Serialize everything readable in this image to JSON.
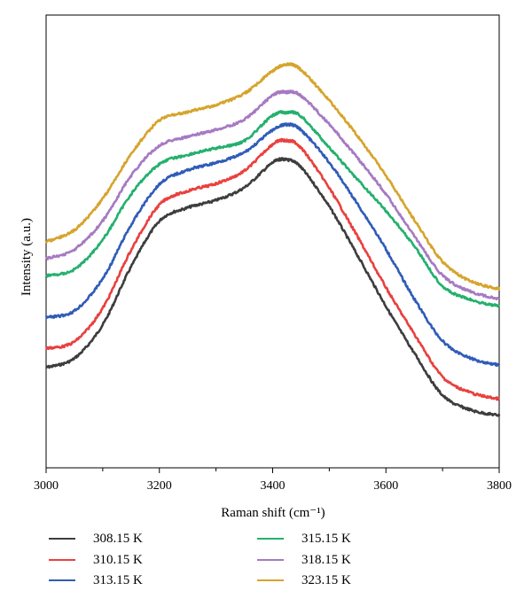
{
  "chart_data": {
    "type": "line",
    "xlabel": "Raman shift (cm⁻¹)",
    "ylabel": "Intensity (a.u.)",
    "xlim": [
      3000,
      3800
    ],
    "ylim": [
      0,
      1
    ],
    "x_ticks": [
      3000,
      3200,
      3400,
      3600,
      3800
    ],
    "x_tick_labels": [
      "3000",
      "3200",
      "3400",
      "3600",
      "3800"
    ],
    "y_ticks_shown": false,
    "grid": false,
    "legend_position": "bottom",
    "x": [
      3000,
      3050,
      3100,
      3150,
      3200,
      3250,
      3300,
      3350,
      3400,
      3425,
      3450,
      3500,
      3550,
      3600,
      3650,
      3700,
      3750,
      3800
    ],
    "series": [
      {
        "name": "308.15 K",
        "color": "#3d3d3d",
        "values": [
          0.163,
          0.189,
          0.284,
          0.447,
          0.576,
          0.614,
          0.635,
          0.671,
          0.741,
          0.749,
          0.728,
          0.617,
          0.479,
          0.336,
          0.204,
          0.085,
          0.043,
          0.028
        ]
      },
      {
        "name": "310.15 K",
        "color": "#e8413f",
        "values": [
          0.217,
          0.236,
          0.331,
          0.494,
          0.622,
          0.661,
          0.682,
          0.718,
          0.793,
          0.803,
          0.783,
          0.669,
          0.532,
          0.389,
          0.258,
          0.137,
          0.092,
          0.074
        ]
      },
      {
        "name": "313.15 K",
        "color": "#2f5cb8",
        "values": [
          0.304,
          0.323,
          0.414,
          0.565,
          0.68,
          0.72,
          0.741,
          0.77,
          0.833,
          0.848,
          0.833,
          0.741,
          0.624,
          0.497,
          0.357,
          0.238,
          0.189,
          0.17
        ]
      },
      {
        "name": "315.15 K",
        "color": "#24b06e",
        "values": [
          0.422,
          0.44,
          0.524,
          0.652,
          0.737,
          0.763,
          0.782,
          0.803,
          0.874,
          0.882,
          0.872,
          0.783,
          0.693,
          0.605,
          0.506,
          0.393,
          0.354,
          0.336
        ]
      },
      {
        "name": "318.15 K",
        "color": "#a67ac2",
        "values": [
          0.47,
          0.496,
          0.577,
          0.704,
          0.789,
          0.814,
          0.834,
          0.863,
          0.931,
          0.94,
          0.93,
          0.849,
          0.754,
          0.652,
          0.534,
          0.423,
          0.377,
          0.357
        ]
      },
      {
        "name": "323.15 K",
        "color": "#d6a42c",
        "values": [
          0.518,
          0.551,
          0.64,
          0.765,
          0.86,
          0.884,
          0.904,
          0.936,
          1.0,
          1.018,
          1.003,
          0.916,
          0.816,
          0.704,
          0.58,
          0.462,
          0.406,
          0.385
        ]
      }
    ]
  }
}
